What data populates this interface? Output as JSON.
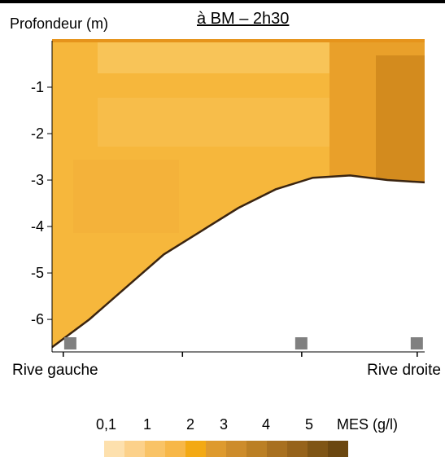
{
  "chart_data": {
    "type": "heatmap",
    "title": "à BM – 2h30",
    "ylabel": "Profondeur (m)",
    "ylim": [
      -6.7,
      0
    ],
    "yticks": [
      -1,
      -2,
      -3,
      -4,
      -5,
      -6
    ],
    "ytick_labels": [
      "-1",
      "-2",
      "-3",
      "-4",
      "-5",
      "-6"
    ],
    "x_ends": {
      "left": "Rive gauche",
      "right": "Rive droite"
    },
    "bed_profile": [
      {
        "x": 0.0,
        "depth": -6.6
      },
      {
        "x": 0.1,
        "depth": -6.0
      },
      {
        "x": 0.2,
        "depth": -5.3
      },
      {
        "x": 0.3,
        "depth": -4.6
      },
      {
        "x": 0.4,
        "depth": -4.1
      },
      {
        "x": 0.5,
        "depth": -3.6
      },
      {
        "x": 0.6,
        "depth": -3.2
      },
      {
        "x": 0.7,
        "depth": -2.95
      },
      {
        "x": 0.8,
        "depth": -2.9
      },
      {
        "x": 0.9,
        "depth": -3.0
      },
      {
        "x": 1.0,
        "depth": -3.05
      }
    ],
    "concentration_range_gl": [
      1,
      3
    ],
    "sensors_x": [
      0.05,
      0.67,
      0.98
    ],
    "legend": {
      "unit_label": "MES (g/l)",
      "ticks": [
        "0,1",
        "1",
        "2",
        "3",
        "4",
        "5"
      ],
      "colors": [
        "#fde0ad",
        "#fcd18a",
        "#f9c366",
        "#f7b748",
        "#f3a914",
        "#de9a2e",
        "#cd8c2b",
        "#bb7f24",
        "#a87020",
        "#96631b",
        "#7f5515",
        "#6b4710"
      ]
    },
    "grid": false
  }
}
